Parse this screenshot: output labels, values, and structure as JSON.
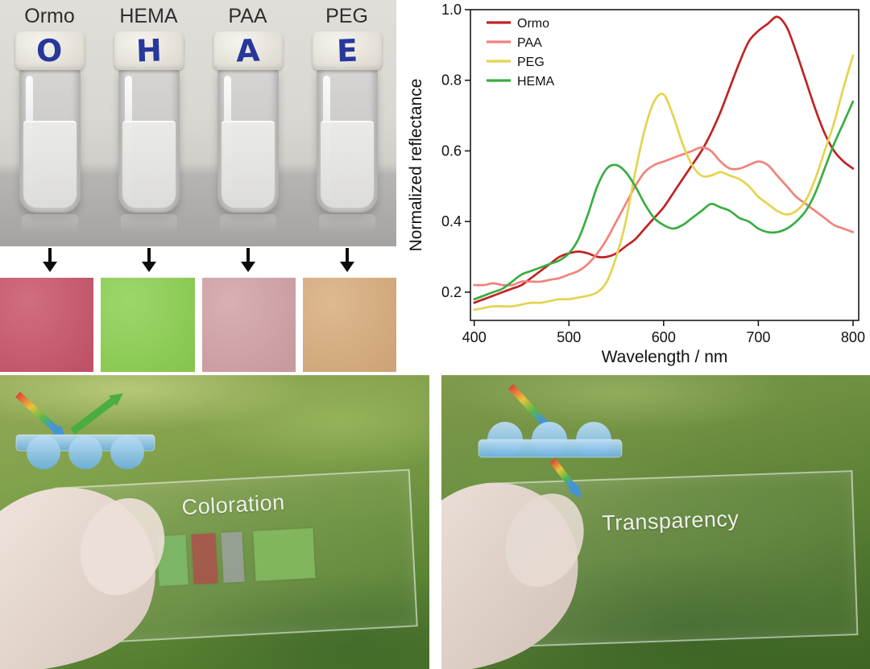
{
  "panels": {
    "vials": {
      "labels": [
        "Ormo",
        "HEMA",
        "PAA",
        "PEG"
      ],
      "cap_letters": [
        "O",
        "H",
        "A",
        "E"
      ],
      "swatch_colors": [
        "#c9566b",
        "#8dd052",
        "#d2a2a6",
        "#d9ad7d"
      ]
    },
    "coloration": {
      "label": "Coloration",
      "patch_colors": [
        "#7db868",
        "#a8564c",
        "#99a198",
        "#83b95f"
      ]
    },
    "transparency": {
      "label": "Transparency"
    }
  },
  "chart_data": {
    "type": "line",
    "title": "",
    "xlabel": "Wavelength / nm",
    "ylabel": "Normalized reflectance",
    "xlim": [
      396,
      806
    ],
    "ylim": [
      0.12,
      1.0
    ],
    "x_ticks": [
      400,
      500,
      600,
      700,
      800
    ],
    "y_ticks": [
      0.2,
      0.4,
      0.6,
      0.8,
      1.0
    ],
    "grid": false,
    "legend_position": "top-left",
    "x": [
      400,
      410,
      420,
      430,
      440,
      450,
      460,
      470,
      480,
      490,
      500,
      510,
      520,
      530,
      540,
      550,
      560,
      570,
      580,
      590,
      600,
      610,
      620,
      630,
      640,
      650,
      660,
      670,
      680,
      690,
      700,
      710,
      720,
      730,
      740,
      750,
      760,
      770,
      780,
      790,
      800
    ],
    "series": [
      {
        "name": "Ormo",
        "color": "#c02423",
        "values": [
          0.17,
          0.18,
          0.19,
          0.2,
          0.21,
          0.22,
          0.24,
          0.26,
          0.28,
          0.3,
          0.31,
          0.315,
          0.31,
          0.3,
          0.3,
          0.31,
          0.33,
          0.35,
          0.38,
          0.41,
          0.44,
          0.48,
          0.52,
          0.56,
          0.6,
          0.65,
          0.71,
          0.78,
          0.85,
          0.91,
          0.94,
          0.96,
          0.98,
          0.95,
          0.88,
          0.8,
          0.72,
          0.65,
          0.6,
          0.57,
          0.55
        ]
      },
      {
        "name": "PAA",
        "color": "#f0837a",
        "values": [
          0.22,
          0.22,
          0.225,
          0.22,
          0.22,
          0.23,
          0.23,
          0.23,
          0.235,
          0.24,
          0.25,
          0.26,
          0.28,
          0.31,
          0.35,
          0.4,
          0.45,
          0.5,
          0.54,
          0.56,
          0.57,
          0.58,
          0.59,
          0.6,
          0.61,
          0.6,
          0.57,
          0.55,
          0.55,
          0.56,
          0.57,
          0.56,
          0.53,
          0.5,
          0.47,
          0.45,
          0.43,
          0.41,
          0.39,
          0.38,
          0.37
        ]
      },
      {
        "name": "PEG",
        "color": "#e4d44f",
        "values": [
          0.15,
          0.155,
          0.16,
          0.16,
          0.16,
          0.165,
          0.17,
          0.17,
          0.175,
          0.18,
          0.18,
          0.185,
          0.19,
          0.2,
          0.23,
          0.3,
          0.4,
          0.54,
          0.66,
          0.74,
          0.76,
          0.7,
          0.62,
          0.56,
          0.53,
          0.53,
          0.54,
          0.53,
          0.52,
          0.5,
          0.47,
          0.45,
          0.43,
          0.42,
          0.43,
          0.46,
          0.52,
          0.6,
          0.68,
          0.78,
          0.87
        ]
      },
      {
        "name": "HEMA",
        "color": "#3aad42",
        "values": [
          0.18,
          0.19,
          0.2,
          0.21,
          0.23,
          0.25,
          0.26,
          0.27,
          0.28,
          0.29,
          0.31,
          0.35,
          0.42,
          0.5,
          0.55,
          0.56,
          0.54,
          0.5,
          0.45,
          0.41,
          0.39,
          0.38,
          0.39,
          0.41,
          0.43,
          0.45,
          0.44,
          0.43,
          0.41,
          0.4,
          0.38,
          0.37,
          0.37,
          0.38,
          0.4,
          0.43,
          0.48,
          0.55,
          0.62,
          0.68,
          0.74
        ]
      }
    ]
  }
}
